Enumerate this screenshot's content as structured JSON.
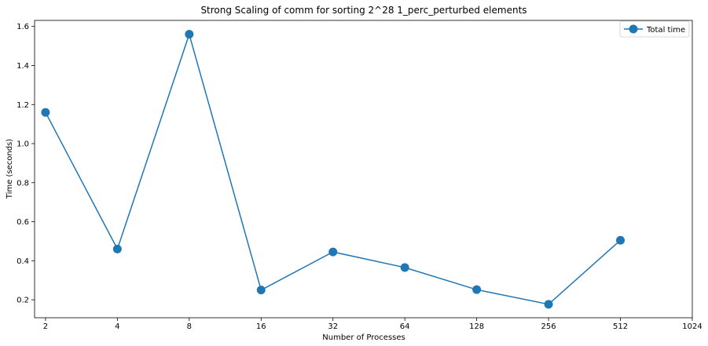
{
  "chart_data": {
    "type": "line",
    "title": "Strong Scaling of comm for sorting 2^28 1_perc_perturbed elements",
    "xlabel": "Number of Processes",
    "ylabel": "Time (seconds)",
    "x_scale": "log2",
    "x_ticks": [
      "2",
      "4",
      "8",
      "16",
      "32",
      "64",
      "128",
      "256",
      "512",
      "1024"
    ],
    "x_tick_values": [
      2,
      4,
      8,
      16,
      32,
      64,
      128,
      256,
      512,
      1024
    ],
    "y_ticks": [
      "0.2",
      "0.4",
      "0.6",
      "0.8",
      "1.0",
      "1.2",
      "1.4",
      "1.6"
    ],
    "y_tick_values": [
      0.2,
      0.4,
      0.6,
      0.8,
      1.0,
      1.2,
      1.4,
      1.6
    ],
    "xlim": [
      1.8,
      1024
    ],
    "ylim": [
      0.108,
      1.631
    ],
    "grid": false,
    "legend_position": "top-right",
    "series": [
      {
        "name": "Total time",
        "color": "#1f77b4",
        "marker": "circle",
        "x": [
          2,
          4,
          8,
          16,
          32,
          64,
          128,
          256,
          512
        ],
        "values": [
          1.16,
          0.46,
          1.56,
          0.25,
          0.445,
          0.365,
          0.252,
          0.177,
          0.505
        ]
      }
    ]
  }
}
